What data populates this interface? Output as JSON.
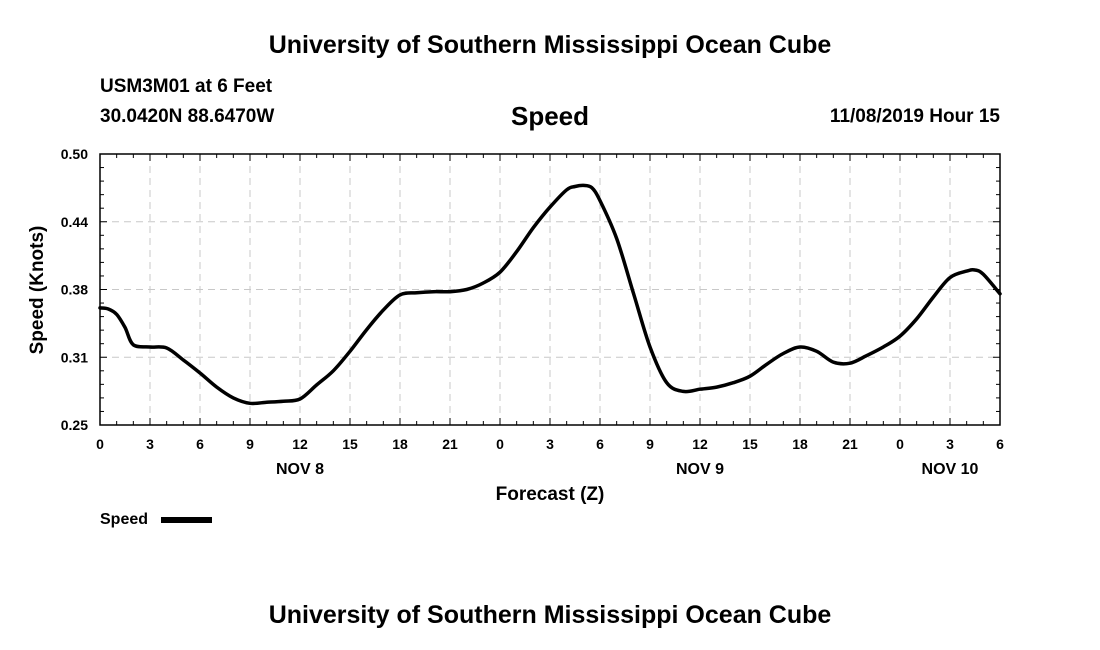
{
  "header": {
    "title": "University of Southern Mississippi Ocean Cube",
    "station": "USM3M01 at 6 Feet",
    "coordinates": "30.0420N 88.6470W",
    "chart_title": "Speed",
    "datetime": "11/08/2019 Hour 15"
  },
  "footer": {
    "title": "University of Southern Mississippi Ocean Cube"
  },
  "chart_data": {
    "type": "line",
    "xlabel": "Forecast (Z)",
    "ylabel": "Speed (Knots)",
    "xlim": [
      0,
      54
    ],
    "ylim": [
      0.25,
      0.5
    ],
    "y_ticks": [
      "0.25",
      "0.31",
      "0.38",
      "0.44",
      "0.50"
    ],
    "x_ticks": [
      "0",
      "3",
      "6",
      "9",
      "12",
      "15",
      "18",
      "21",
      "0",
      "3",
      "6",
      "9",
      "12",
      "15",
      "18",
      "21",
      "0",
      "3",
      "6"
    ],
    "date_labels": [
      {
        "label": "NOV 8",
        "hour": 12
      },
      {
        "label": "NOV 9",
        "hour": 36
      },
      {
        "label": "NOV 10",
        "hour": 51
      }
    ],
    "grid": true,
    "legend_position": "bottom-left",
    "series": [
      {
        "name": "Speed",
        "color": "#000000",
        "x": [
          0,
          0.5,
          1,
          1.5,
          2,
          3,
          4,
          5,
          6,
          7,
          8,
          9,
          10,
          11,
          12,
          13,
          14,
          15,
          16,
          17,
          18,
          19,
          20,
          21,
          22,
          23,
          24,
          25,
          26,
          27,
          28,
          28.5,
          29,
          29.5,
          30,
          31,
          32,
          33,
          34,
          35,
          36,
          37,
          38,
          39,
          40,
          41,
          42,
          43,
          44,
          45,
          46,
          47,
          48,
          49,
          50,
          51,
          52,
          52.5,
          53,
          54
        ],
        "y": [
          0.358,
          0.357,
          0.352,
          0.34,
          0.324,
          0.322,
          0.321,
          0.31,
          0.298,
          0.285,
          0.275,
          0.27,
          0.271,
          0.272,
          0.274,
          0.287,
          0.3,
          0.318,
          0.338,
          0.356,
          0.37,
          0.372,
          0.373,
          0.373,
          0.375,
          0.381,
          0.391,
          0.41,
          0.432,
          0.451,
          0.467,
          0.47,
          0.471,
          0.469,
          0.457,
          0.422,
          0.372,
          0.322,
          0.289,
          0.281,
          0.283,
          0.285,
          0.289,
          0.295,
          0.306,
          0.316,
          0.322,
          0.318,
          0.308,
          0.307,
          0.314,
          0.322,
          0.332,
          0.348,
          0.368,
          0.386,
          0.392,
          0.393,
          0.389,
          0.371
        ]
      }
    ]
  }
}
